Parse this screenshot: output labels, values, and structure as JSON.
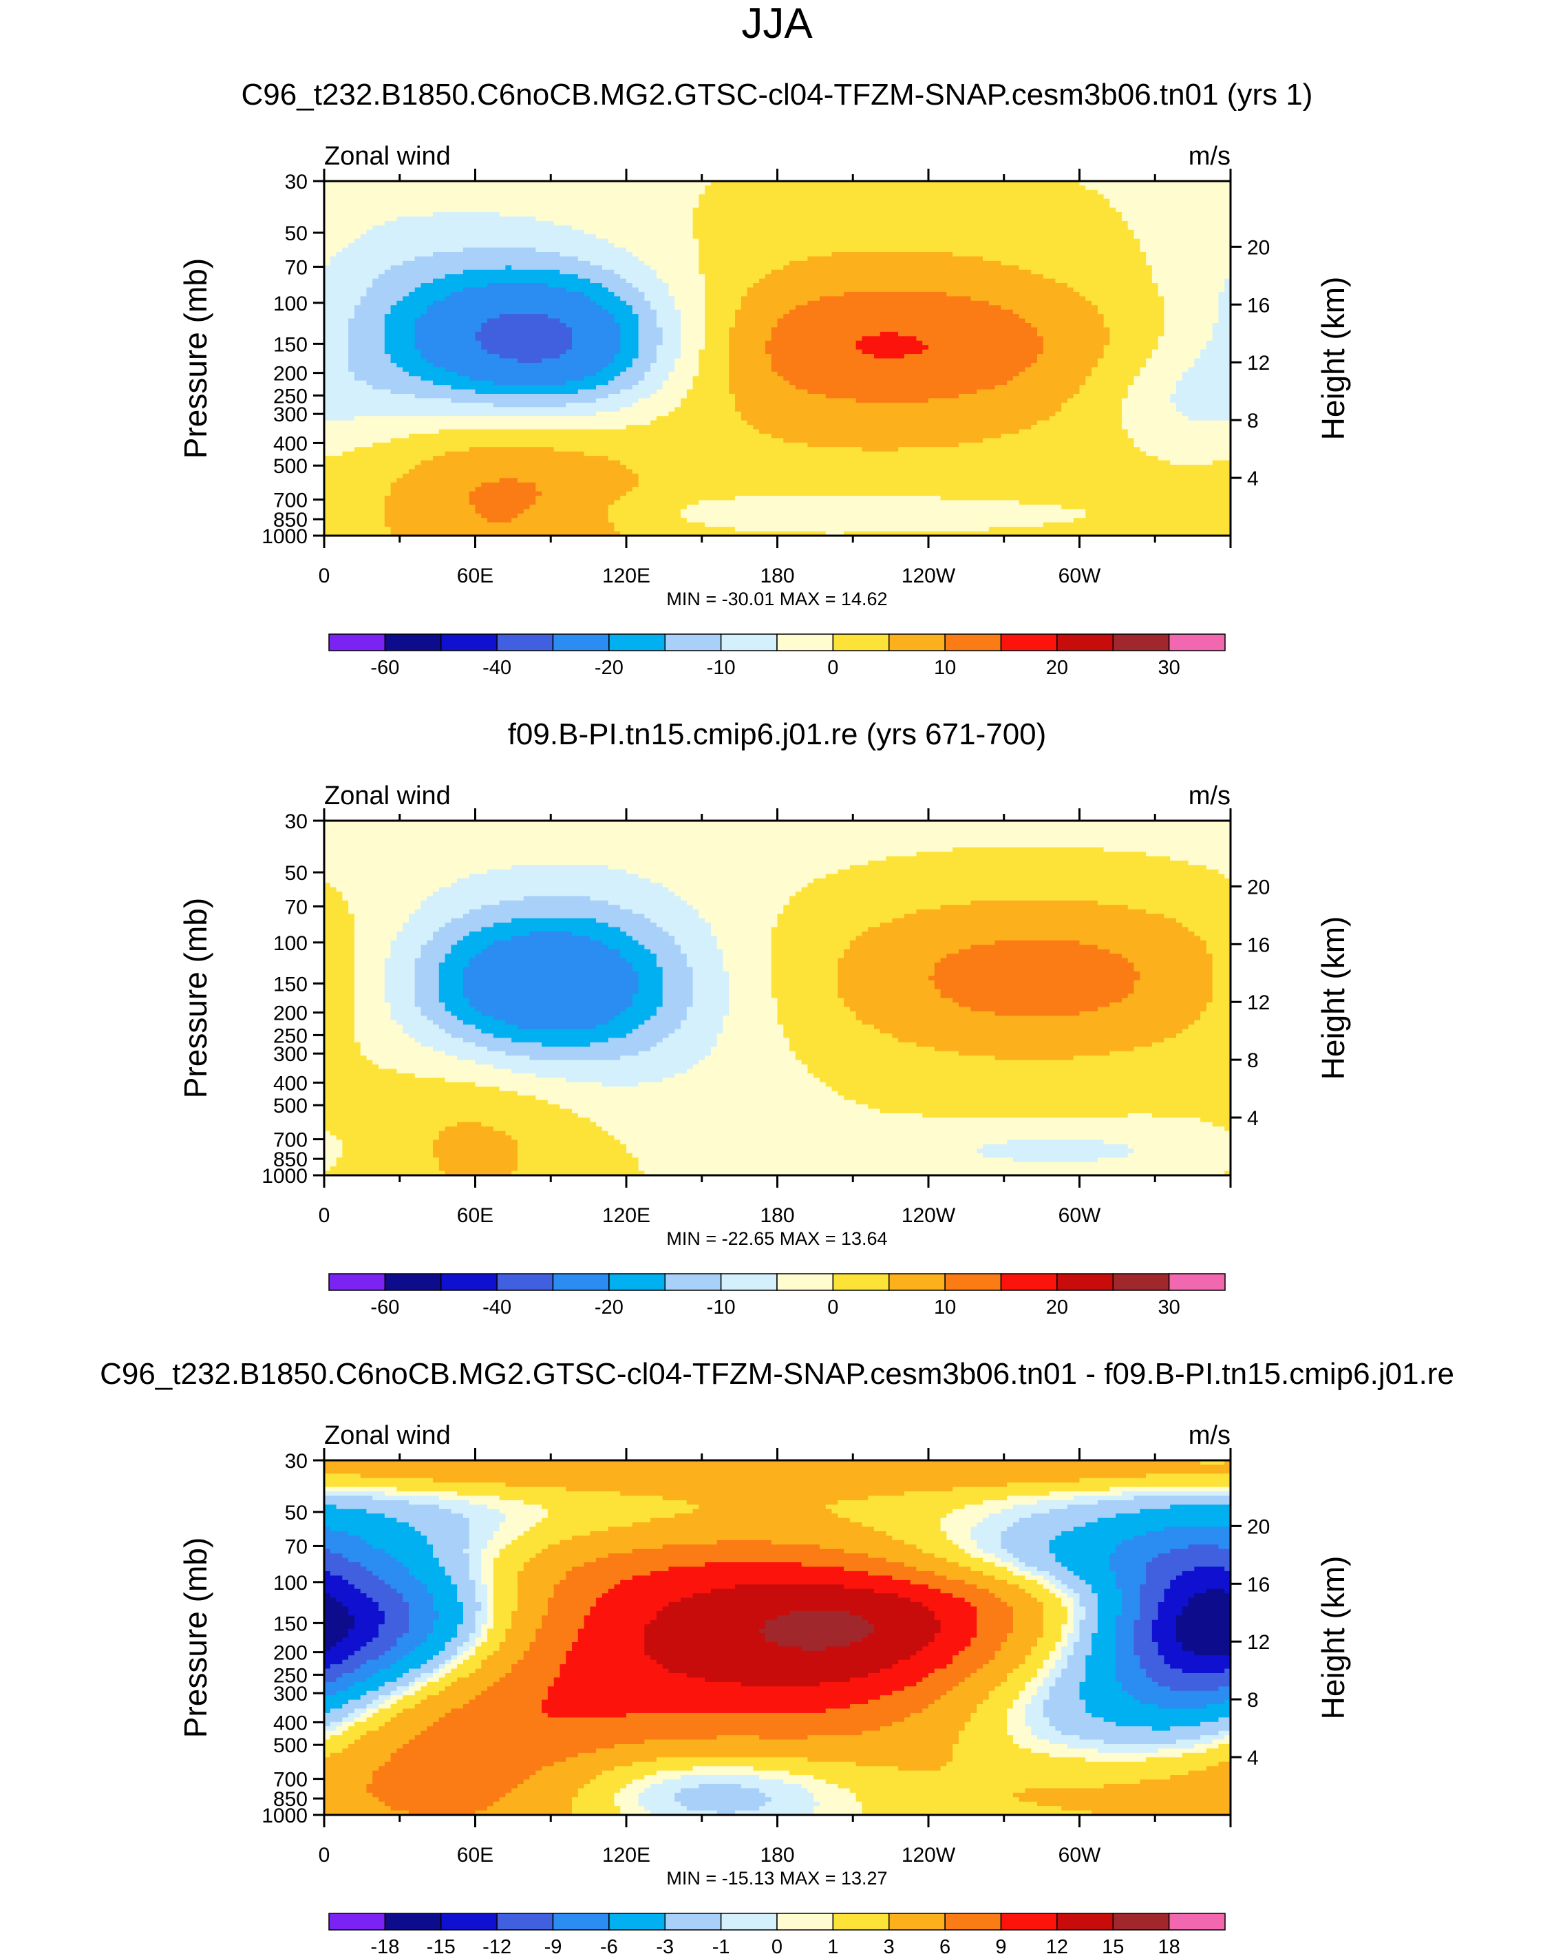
{
  "figure": {
    "title": "JJA",
    "panel_titles": [
      "C96_t232.B1850.C6noCB.MG2.GTSC-cl04-TFZM-SNAP.cesm3b06.tn01 (yrs 1)",
      "f09.B-PI.tn15.cmip6.j01.re (yrs 671-700)",
      "C96_t232.B1850.C6noCB.MG2.GTSC-cl04-TFZM-SNAP.cesm3b06.tn01 - f09.B-PI.tn15.cmip6.j01.re"
    ]
  },
  "chart_data": [
    {
      "type": "heatmap",
      "title": "C96_t232.B1850.C6noCB.MG2.GTSC-cl04-TFZM-SNAP.cesm3b06.tn01 (yrs 1)",
      "variable_label": "Zonal wind",
      "units": "m/s",
      "ylabel": "Pressure (mb)",
      "y2label": "Height (km)",
      "x_ticks": [
        "0",
        "60E",
        "120E",
        "180",
        "120W",
        "60W"
      ],
      "x_tick_values": [
        0,
        60,
        120,
        180,
        240,
        300
      ],
      "xlim": [
        0,
        360
      ],
      "y_ticks": [
        "30",
        "50",
        "70",
        "100",
        "150",
        "200",
        "250",
        "300",
        "400",
        "500",
        "700",
        "850",
        "1000"
      ],
      "y_tick_values": [
        30,
        50,
        70,
        100,
        150,
        200,
        250,
        300,
        400,
        500,
        700,
        850,
        1000
      ],
      "ylim": [
        1000,
        30
      ],
      "y2_ticks": [
        "20",
        "16",
        "12",
        "8",
        "4"
      ],
      "y2_tick_values": [
        20,
        16,
        12,
        8,
        4
      ],
      "stats": "MIN = -30.01  MAX =  14.62",
      "contour_levels": [
        -70,
        -60,
        -50,
        -40,
        -30,
        -20,
        -15,
        -10,
        -5,
        0,
        5,
        10,
        15,
        20,
        25,
        30,
        35,
        40
      ],
      "colorbar_labels": [
        "-60",
        "-40",
        "-20",
        "-10",
        "0",
        "10",
        "20",
        "30"
      ],
      "colorbar_label_edges": [
        1,
        3,
        5,
        7,
        9,
        11,
        13,
        15
      ],
      "features": [
        {
          "lon": 88,
          "p": 150,
          "value": -28,
          "sx": 38,
          "sy": 0.48
        },
        {
          "lon": 62,
          "p": 135,
          "value": -14,
          "sx": 60,
          "sy": 0.8
        },
        {
          "lon": 208,
          "p": 155,
          "value": 9,
          "sx": 115,
          "sy": 1.0
        },
        {
          "lon": 220,
          "p": 150,
          "value": 8,
          "sx": 70,
          "sy": 0.45
        },
        {
          "lon": 70,
          "p": 600,
          "value": 12,
          "sx": 40,
          "sy": 0.8
        },
        {
          "lon": 200,
          "p": 790,
          "value": -6,
          "sx": 55,
          "sy": 0.12
        },
        {
          "lon": 345,
          "p": 260,
          "value": -6,
          "sx": 25,
          "sy": 0.35
        },
        {
          "lon": 0,
          "p": 45,
          "value": -1.5,
          "sx": 400,
          "sy": 2.0
        }
      ]
    },
    {
      "type": "heatmap",
      "title": "f09.B-PI.tn15.cmip6.j01.re (yrs 671-700)",
      "variable_label": "Zonal wind",
      "units": "m/s",
      "ylabel": "Pressure (mb)",
      "y2label": "Height (km)",
      "x_ticks": [
        "0",
        "60E",
        "120E",
        "180",
        "120W",
        "60W"
      ],
      "x_tick_values": [
        0,
        60,
        120,
        180,
        240,
        300
      ],
      "xlim": [
        0,
        360
      ],
      "y_ticks": [
        "30",
        "50",
        "70",
        "100",
        "150",
        "200",
        "250",
        "300",
        "400",
        "500",
        "700",
        "850",
        "1000"
      ],
      "y_tick_values": [
        30,
        50,
        70,
        100,
        150,
        200,
        250,
        300,
        400,
        500,
        700,
        850,
        1000
      ],
      "ylim": [
        1000,
        30
      ],
      "y2_ticks": [
        "20",
        "16",
        "12",
        "8",
        "4"
      ],
      "y2_tick_values": [
        20,
        16,
        12,
        8,
        4
      ],
      "stats": "MIN = -22.65  MAX =  13.64",
      "contour_levels": [
        -70,
        -60,
        -50,
        -40,
        -30,
        -20,
        -15,
        -10,
        -5,
        0,
        5,
        10,
        15,
        20,
        25,
        30,
        35,
        40
      ],
      "colorbar_labels": [
        "-60",
        "-40",
        "-20",
        "-10",
        "0",
        "10",
        "20",
        "30"
      ],
      "colorbar_label_edges": [
        1,
        3,
        5,
        7,
        9,
        11,
        13,
        15
      ],
      "features": [
        {
          "lon": 85,
          "p": 150,
          "value": -23,
          "sx": 38,
          "sy": 0.5
        },
        {
          "lon": 95,
          "p": 170,
          "value": -8,
          "sx": 60,
          "sy": 0.8
        },
        {
          "lon": 285,
          "p": 140,
          "value": 14,
          "sx": 80,
          "sy": 0.65
        },
        {
          "lon": 62,
          "p": 650,
          "value": 8,
          "sx": 35,
          "sy": 0.7
        },
        {
          "lon": 290,
          "p": 780,
          "value": -6,
          "sx": 45,
          "sy": 0.15
        },
        {
          "lon": 0,
          "p": 45,
          "value": -2,
          "sx": 400,
          "sy": 2.0
        }
      ]
    },
    {
      "type": "heatmap",
      "title": "C96_t232.B1850.C6noCB.MG2.GTSC-cl04-TFZM-SNAP.cesm3b06.tn01 - f09.B-PI.tn15.cmip6.j01.re",
      "variable_label": "Zonal wind",
      "units": "m/s",
      "ylabel": "Pressure (mb)",
      "y2label": "Height (km)",
      "x_ticks": [
        "0",
        "60E",
        "120E",
        "180",
        "120W",
        "60W"
      ],
      "x_tick_values": [
        0,
        60,
        120,
        180,
        240,
        300
      ],
      "xlim": [
        0,
        360
      ],
      "y_ticks": [
        "30",
        "50",
        "70",
        "100",
        "150",
        "200",
        "250",
        "300",
        "400",
        "500",
        "700",
        "850",
        "1000"
      ],
      "y_tick_values": [
        30,
        50,
        70,
        100,
        150,
        200,
        250,
        300,
        400,
        500,
        700,
        850,
        1000
      ],
      "ylim": [
        1000,
        30
      ],
      "y2_ticks": [
        "20",
        "16",
        "12",
        "8",
        "4"
      ],
      "y2_tick_values": [
        20,
        16,
        12,
        8,
        4
      ],
      "stats": "MIN = -15.13  MAX =  13.27",
      "contour_levels": [
        -24,
        -18,
        -15,
        -12,
        -9,
        -6,
        -3,
        -1,
        0,
        1,
        3,
        6,
        9,
        12,
        15,
        18,
        24,
        30
      ],
      "colorbar_labels": [
        "-18",
        "-15",
        "-12",
        "-9",
        "-6",
        "-3",
        "-1",
        "0",
        "1",
        "3",
        "6",
        "9",
        "12",
        "15",
        "18"
      ],
      "colorbar_label_edges": [
        1,
        2,
        3,
        4,
        5,
        6,
        7,
        8,
        9,
        10,
        11,
        12,
        13,
        14,
        15
      ],
      "features": [
        {
          "lon": 20,
          "p": 150,
          "value": -14,
          "sx": 40,
          "sy": 0.5
        },
        {
          "lon": 175,
          "p": 165,
          "value": 13,
          "sx": 90,
          "sy": 0.9
        },
        {
          "lon": 240,
          "p": 150,
          "value": 5,
          "sx": 50,
          "sy": 0.5
        },
        {
          "lon": 300,
          "p": 280,
          "value": -7,
          "sx": 45,
          "sy": 0.8
        },
        {
          "lon": 345,
          "p": 160,
          "value": -7,
          "sx": 22,
          "sy": 0.6
        },
        {
          "lon": 150,
          "p": 760,
          "value": -5,
          "sx": 50,
          "sy": 0.3
        },
        {
          "lon": 60,
          "p": 600,
          "value": 6,
          "sx": 45,
          "sy": 0.9
        },
        {
          "lon": 310,
          "p": 780,
          "value": 5,
          "sx": 60,
          "sy": 0.4
        },
        {
          "lon": 280,
          "p": 80,
          "value": -5,
          "sx": 60,
          "sy": 0.25
        },
        {
          "lon": 0,
          "p": 33,
          "value": 3.5,
          "sx": 400,
          "sy": 0.15
        },
        {
          "lon": 0,
          "p": 55,
          "value": -2.5,
          "sx": 400,
          "sy": 0.25
        }
      ]
    }
  ],
  "colors": {
    "palette": [
      "#7b23f2",
      "#0c0c8c",
      "#1010d0",
      "#4060e0",
      "#2b8cf2",
      "#00b0f0",
      "#a8d0f8",
      "#d4f0fc",
      "#fffcd0",
      "#fde338",
      "#fcb01c",
      "#fb7c14",
      "#fc140c",
      "#c80c0c",
      "#a0282c",
      "#f268b0"
    ],
    "text": "#000000"
  }
}
